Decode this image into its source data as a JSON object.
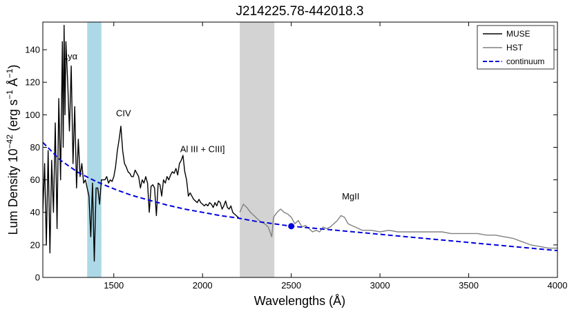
{
  "chart_data": {
    "type": "line",
    "title": "J214225.78-442018.3",
    "xlabel": "Wavelengths (Å)",
    "ylabel": "Lum Density 10^-42 (erg s^-1 Å^-1)",
    "ylabel_parts": {
      "pre": "Lum Density 10",
      "exp1": "−42",
      "mid": " (erg s",
      "exp2": "−1",
      "mid2": " Å",
      "exp3": "−1",
      "post": ")"
    },
    "xlim": [
      1100,
      4000
    ],
    "ylim": [
      0,
      157
    ],
    "xticks": [
      1500,
      2000,
      2500,
      3000,
      3500,
      4000
    ],
    "yticks": [
      0,
      20,
      40,
      60,
      80,
      100,
      120,
      140
    ],
    "grid": false,
    "legend_position": "top-right",
    "legend": [
      {
        "label": "MUSE",
        "color": "#000000",
        "style": "solid"
      },
      {
        "label": "HST",
        "color": "#808080",
        "style": "solid"
      },
      {
        "label": "continuum",
        "color": "#0000dd",
        "style": "dashed"
      }
    ],
    "shaded_regions": [
      {
        "x": [
          1350,
          1430
        ],
        "color": "#add8e6"
      },
      {
        "x": [
          2210,
          2405
        ],
        "color": "#d3d3d3"
      }
    ],
    "annotations": [
      {
        "text": "Lyα",
        "x": 1255,
        "y": 134
      },
      {
        "text": "CIV",
        "x": 1555,
        "y": 99
      },
      {
        "text": "Al III + CIII]",
        "x": 2000,
        "y": 77
      },
      {
        "text": "MgII",
        "x": 2835,
        "y": 48
      }
    ],
    "marker": {
      "x": 2500,
      "y": 31.5,
      "color": "#0000dd"
    },
    "series": [
      {
        "name": "MUSE",
        "color": "#000000",
        "x": [
          1100,
          1110,
          1120,
          1130,
          1140,
          1150,
          1160,
          1170,
          1180,
          1190,
          1200,
          1210,
          1215,
          1220,
          1225,
          1230,
          1240,
          1250,
          1260,
          1270,
          1280,
          1290,
          1300,
          1310,
          1320,
          1330,
          1340,
          1350,
          1360,
          1370,
          1380,
          1390,
          1400,
          1410,
          1420,
          1430,
          1440,
          1450,
          1460,
          1470,
          1480,
          1490,
          1500,
          1510,
          1520,
          1530,
          1540,
          1550,
          1560,
          1570,
          1580,
          1590,
          1600,
          1610,
          1620,
          1630,
          1640,
          1650,
          1660,
          1670,
          1680,
          1690,
          1700,
          1710,
          1720,
          1730,
          1740,
          1750,
          1760,
          1770,
          1780,
          1790,
          1800,
          1810,
          1820,
          1830,
          1840,
          1850,
          1860,
          1870,
          1880,
          1890,
          1900,
          1910,
          1920,
          1930,
          1940,
          1950,
          1960,
          1970,
          1980,
          1990,
          2000,
          2010,
          2020,
          2030,
          2040,
          2050,
          2060,
          2070,
          2080,
          2090,
          2100,
          2110,
          2120,
          2130,
          2140,
          2150,
          2160,
          2170,
          2180,
          2190,
          2200,
          2210
        ],
        "y": [
          40,
          70,
          20,
          78,
          15,
          72,
          40,
          95,
          30,
          110,
          60,
          145,
          80,
          155,
          100,
          145,
          120,
          90,
          130,
          70,
          105,
          55,
          85,
          62,
          70,
          58,
          60,
          55,
          50,
          25,
          58,
          10,
          55,
          55,
          45,
          60,
          60,
          60,
          62,
          58,
          60,
          59,
          62,
          68,
          78,
          85,
          93,
          78,
          70,
          68,
          65,
          64,
          62,
          62,
          66,
          64,
          62,
          55,
          60,
          58,
          62,
          58,
          40,
          56,
          57,
          55,
          38,
          58,
          57,
          50,
          60,
          58,
          62,
          60,
          63,
          65,
          64,
          67,
          63,
          70,
          72,
          75,
          65,
          60,
          50,
          52,
          50,
          48,
          47,
          46,
          48,
          46,
          45,
          44,
          45,
          44,
          46,
          45,
          43,
          46,
          44,
          47,
          46,
          42,
          44,
          47,
          43,
          42,
          44,
          40,
          39,
          38,
          37,
          36
        ]
      },
      {
        "name": "HST",
        "color": "#808080",
        "x": [
          2210,
          2230,
          2250,
          2270,
          2290,
          2310,
          2330,
          2350,
          2370,
          2390,
          2400,
          2420,
          2440,
          2460,
          2480,
          2500,
          2520,
          2540,
          2560,
          2580,
          2600,
          2620,
          2640,
          2660,
          2680,
          2700,
          2720,
          2740,
          2760,
          2780,
          2800,
          2820,
          2840,
          2860,
          2880,
          2900,
          2950,
          3000,
          3050,
          3100,
          3150,
          3200,
          3250,
          3300,
          3350,
          3400,
          3450,
          3500,
          3550,
          3600,
          3650,
          3700,
          3750,
          3800,
          3850,
          3900,
          3950,
          4000
        ],
        "y": [
          40,
          45,
          43,
          40,
          38,
          36,
          34,
          33,
          31,
          25,
          37,
          40,
          42,
          40,
          39,
          37,
          33,
          35,
          31,
          32,
          30,
          28,
          29,
          28,
          31,
          30,
          31,
          33,
          35,
          38,
          37,
          33,
          32,
          31,
          30,
          29,
          29,
          28,
          29,
          28,
          28,
          28,
          28,
          28,
          28,
          27,
          27,
          27,
          27,
          26,
          26,
          25,
          24,
          22,
          20,
          19,
          18,
          18
        ]
      },
      {
        "name": "continuum",
        "color": "#0000dd",
        "style": "dashed",
        "x": [
          1100,
          1200,
          1300,
          1400,
          1500,
          1600,
          1700,
          1800,
          1900,
          2000,
          2100,
          2200,
          2300,
          2400,
          2500,
          2600,
          2800,
          3000,
          3200,
          3400,
          3600,
          3800,
          4000
        ],
        "y": [
          83,
          72,
          64.5,
          59,
          54.5,
          50.5,
          47.5,
          44.5,
          42,
          40,
          38,
          36.5,
          34.5,
          33,
          31.5,
          30.5,
          28.5,
          26.5,
          24.5,
          22.5,
          20.5,
          18.5,
          16.5
        ]
      }
    ]
  }
}
